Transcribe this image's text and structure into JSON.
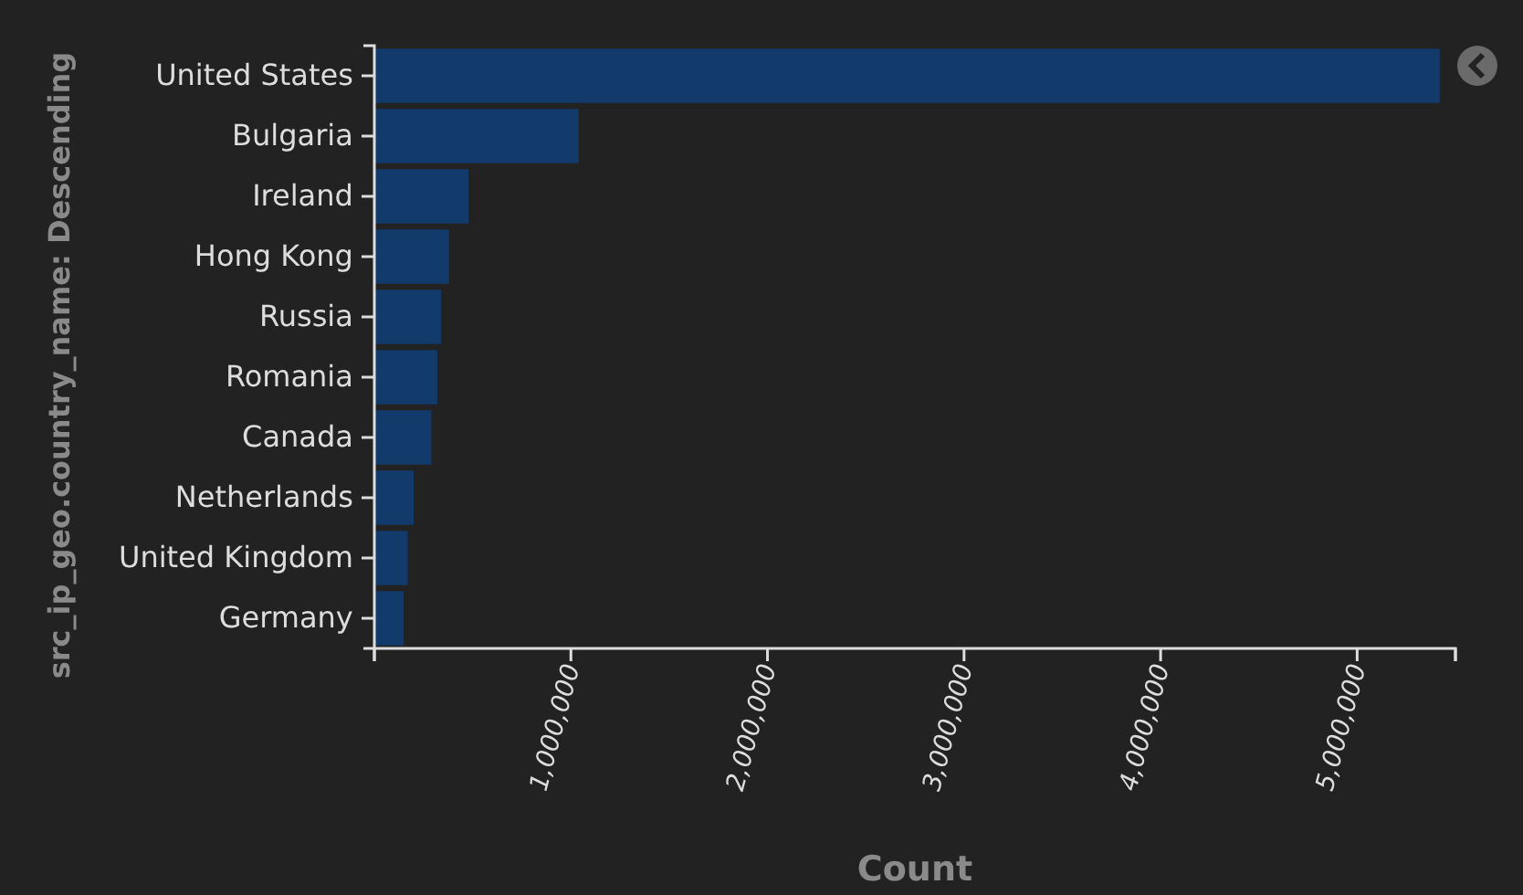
{
  "chart_data": {
    "type": "bar",
    "orientation": "horizontal",
    "xlabel": "Count",
    "ylabel": "src_ip_geo.country_name: Descending",
    "categories": [
      "United States",
      "Bulgaria",
      "Ireland",
      "Hong Kong",
      "Russia",
      "Romania",
      "Canada",
      "Netherlands",
      "United Kingdom",
      "Germany"
    ],
    "values": [
      5420000,
      1040000,
      480000,
      380000,
      340000,
      320000,
      290000,
      200000,
      170000,
      150000
    ],
    "color": "#123a6b",
    "xlim": [
      0,
      5500000
    ],
    "xticks": [
      {
        "value": 0,
        "label": null
      },
      {
        "value": 1000000,
        "label": "1,000,000"
      },
      {
        "value": 2000000,
        "label": "2,000,000"
      },
      {
        "value": 3000000,
        "label": "3,000,000"
      },
      {
        "value": 4000000,
        "label": "4,000,000"
      },
      {
        "value": 5000000,
        "label": "5,000,000"
      },
      {
        "value": 5500000,
        "label": null
      }
    ]
  }
}
